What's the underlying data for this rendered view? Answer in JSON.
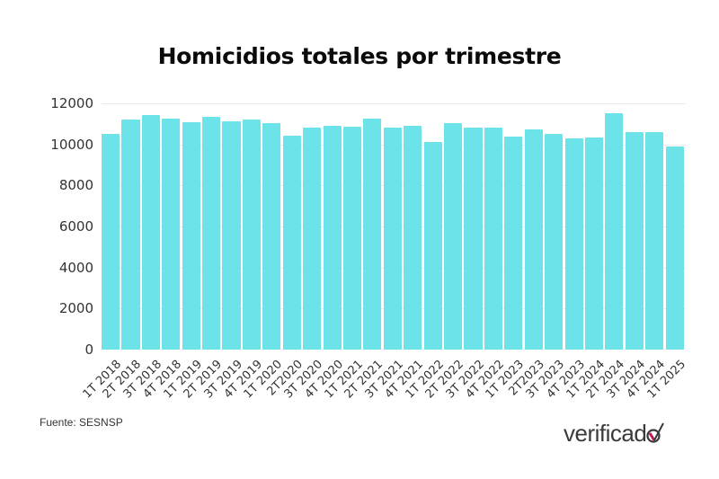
{
  "chart_data": {
    "type": "bar",
    "title": "Homicidios totales por trimestre",
    "xlabel": "",
    "ylabel": "",
    "ylim": [
      0,
      12000
    ],
    "yticks": [
      0,
      2000,
      4000,
      6000,
      8000,
      10000,
      12000
    ],
    "grid": true,
    "legend": null,
    "bar_color": "#6be3e8",
    "categories": [
      "1T 2018",
      "2T 2018",
      "3T 2018",
      "4T 2018",
      "1T 2019",
      "2T 2019",
      "3T 2019",
      "4T 2019",
      "1T 2020",
      "2T2020",
      "3T 2020",
      "4T 2020",
      "1T 2021",
      "2T 2021",
      "3T 2021",
      "4T 2021",
      "1T 2022",
      "2T 2022",
      "3T 2022",
      "4T 2022",
      "1T 2023",
      "2T2023",
      "3T 2023",
      "4T 2023",
      "1T 2024",
      "2T 2024",
      "3T 2024",
      "4T 2024",
      "1T 2025"
    ],
    "values": [
      10520,
      11210,
      11410,
      11250,
      11100,
      11340,
      11130,
      11210,
      11030,
      10430,
      10800,
      10900,
      10860,
      11270,
      10830,
      10910,
      10120,
      11020,
      10810,
      10800,
      10370,
      10740,
      10500,
      10280,
      10340,
      11500,
      10590,
      10590,
      9910
    ]
  },
  "title": "Homicidios totales por trimestre",
  "source": "Fuente: SESNSP",
  "logo": {
    "text": "verificad",
    "icon": "checkmark-o-icon",
    "accent": "#c2185b"
  }
}
